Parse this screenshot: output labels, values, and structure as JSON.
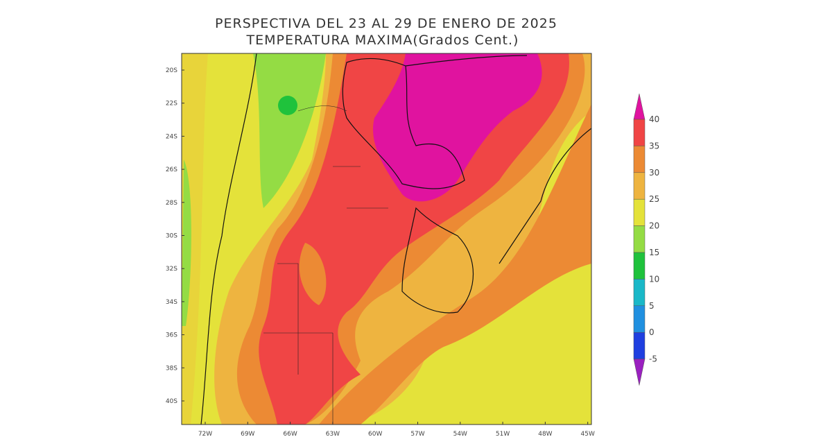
{
  "header": {
    "title": "PERSPECTIVA DEL 23 AL 29 DE ENERO DE 2025",
    "subtitle": "TEMPERATURA MAXIMA(Grados Cent.)"
  },
  "map": {
    "lat_labels": [
      "20S",
      "22S",
      "24S",
      "26S",
      "28S",
      "30S",
      "32S",
      "34S",
      "36S",
      "38S",
      "40S"
    ],
    "lon_labels": [
      "72W",
      "69W",
      "66W",
      "63W",
      "60W",
      "57W",
      "54W",
      "51W",
      "48W",
      "45W"
    ]
  },
  "colorbar": {
    "levels": [
      40,
      35,
      30,
      25,
      20,
      15,
      10,
      5,
      0,
      -5
    ],
    "colors": [
      "#e0139f",
      "#f04545",
      "#ec8a34",
      "#eeb440",
      "#e4e23a",
      "#94dc44",
      "#1fc23c",
      "#1ab8c8",
      "#2090e0",
      "#1f3fe0",
      "#9a20c0"
    ]
  }
}
